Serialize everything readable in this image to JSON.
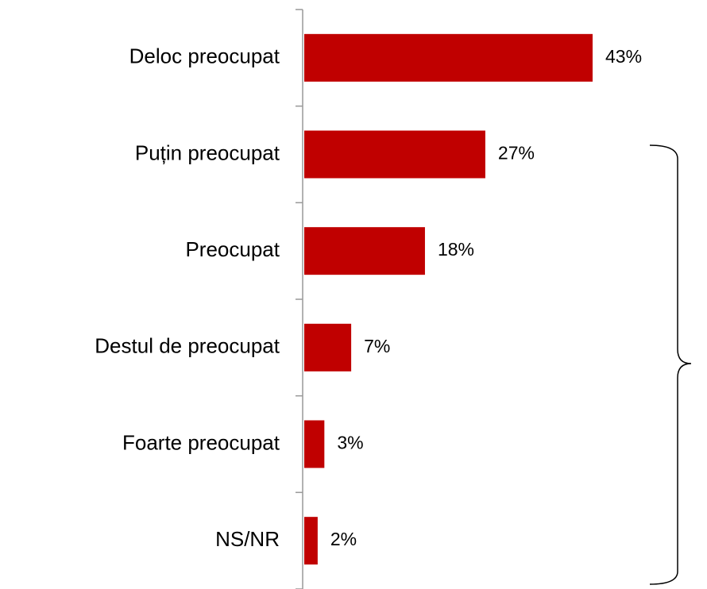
{
  "chart_data": {
    "type": "bar",
    "orientation": "horizontal",
    "categories": [
      "Deloc preocupat",
      "Puțin preocupat",
      "Preocupat",
      "Destul de preocupat",
      "Foarte preocupat",
      "NS/NR"
    ],
    "values": [
      43,
      27,
      18,
      7,
      3,
      2
    ],
    "value_labels": [
      "43%",
      "27%",
      "18%",
      "7%",
      "3%",
      "2%"
    ],
    "color": "#c00000"
  }
}
